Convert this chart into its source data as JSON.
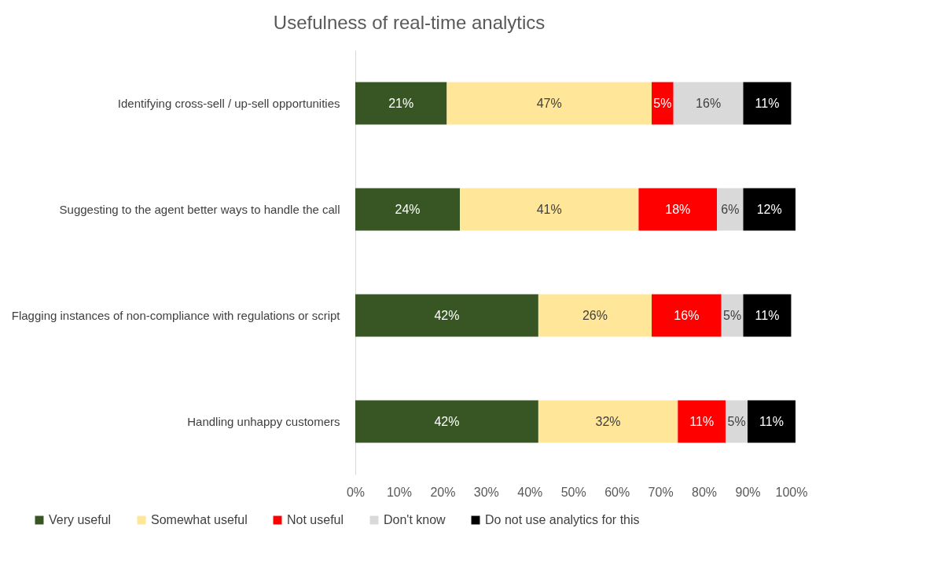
{
  "chart_data": {
    "type": "bar",
    "title": "Usefulness of real-time analytics",
    "orientation": "horizontal",
    "stacked": true,
    "categories": [
      "Identifying cross-sell / up-sell opportunities",
      "Suggesting to the agent better ways to handle the call",
      "Flagging instances of non-compliance with regulations or script",
      "Handling unhappy customers"
    ],
    "series": [
      {
        "name": "Very useful",
        "color": "#375623",
        "values": [
          21,
          24,
          42,
          42
        ],
        "value_labels": [
          "21%",
          "24%",
          "42%",
          "42%"
        ]
      },
      {
        "name": "Somewhat useful",
        "color": "#ffe699",
        "values": [
          47,
          41,
          26,
          32
        ],
        "value_labels": [
          "47%",
          "41%",
          "26%",
          "32%"
        ]
      },
      {
        "name": "Not useful",
        "color": "#ff0000",
        "values": [
          5,
          18,
          16,
          11
        ],
        "value_labels": [
          "5%",
          "18%",
          "16%",
          "11%"
        ]
      },
      {
        "name": "Don't know",
        "color": "#d9d9d9",
        "values": [
          16,
          6,
          5,
          5
        ],
        "value_labels": [
          "16%",
          "6%",
          "5%",
          "5%"
        ]
      },
      {
        "name": "Do not use analytics for this",
        "color": "#000000",
        "values": [
          11,
          12,
          11,
          11
        ],
        "value_labels": [
          "11%",
          "12%",
          "11%",
          "11%"
        ]
      }
    ],
    "xlim": [
      0,
      101
    ],
    "xticks": [
      {
        "value": 0,
        "label": "0%"
      },
      {
        "value": 10,
        "label": "10%"
      },
      {
        "value": 20,
        "label": "20%"
      },
      {
        "value": 30,
        "label": "30%"
      },
      {
        "value": 40,
        "label": "40%"
      },
      {
        "value": 50,
        "label": "50%"
      },
      {
        "value": 60,
        "label": "60%"
      },
      {
        "value": 70,
        "label": "70%"
      },
      {
        "value": 80,
        "label": "80%"
      },
      {
        "value": 90,
        "label": "90%"
      },
      {
        "value": 100,
        "label": "100%"
      }
    ],
    "grid": false,
    "legend": "bottom"
  }
}
